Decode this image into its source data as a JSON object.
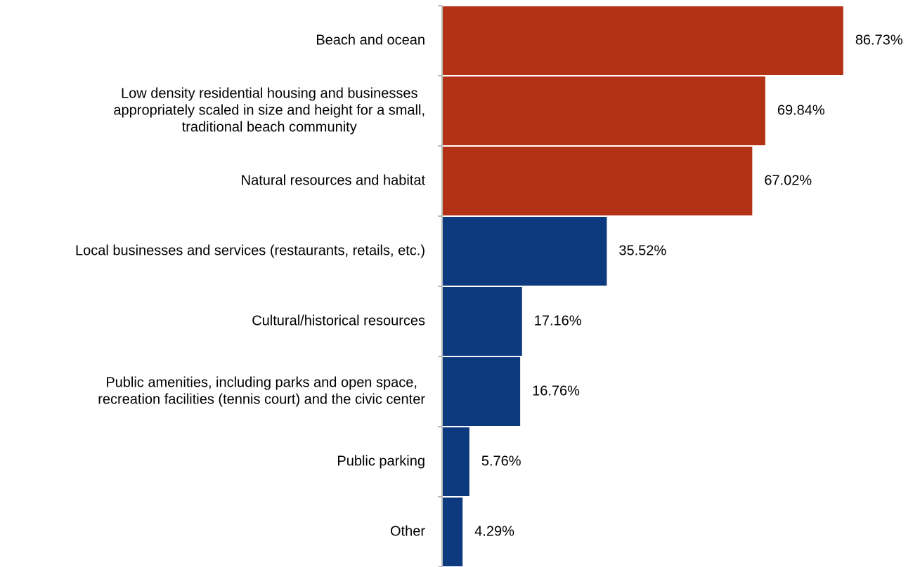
{
  "chart_data": {
    "type": "bar",
    "orientation": "horizontal",
    "categories": [
      [
        "Beach and ocean"
      ],
      [
        "Low density residential housing and businesses",
        "appropriately scaled in size and height for a small,",
        "traditional beach community"
      ],
      [
        "Natural resources and habitat"
      ],
      [
        "Local businesses and services (restaurants, retails, etc.)"
      ],
      [
        "Cultural/historical resources"
      ],
      [
        "Public amenities, including parks and open space,",
        "recreation facilities (tennis court) and the civic center"
      ],
      [
        "Public parking"
      ],
      [
        "Other"
      ]
    ],
    "values": [
      86.73,
      69.84,
      67.02,
      35.52,
      17.16,
      16.76,
      5.76,
      4.29
    ],
    "value_labels": [
      "86.73%",
      "69.84%",
      "67.02%",
      "35.52%",
      "17.16%",
      "16.76%",
      "5.76%",
      "4.29%"
    ],
    "bar_colors": [
      "#b33215",
      "#b33215",
      "#b33215",
      "#0d3a7e",
      "#0d3a7e",
      "#0d3a7e",
      "#0d3a7e",
      "#0d3a7e"
    ],
    "xlim": [
      0,
      100
    ],
    "title": "",
    "xlabel": "",
    "ylabel": "",
    "grid": false,
    "legend": false
  }
}
